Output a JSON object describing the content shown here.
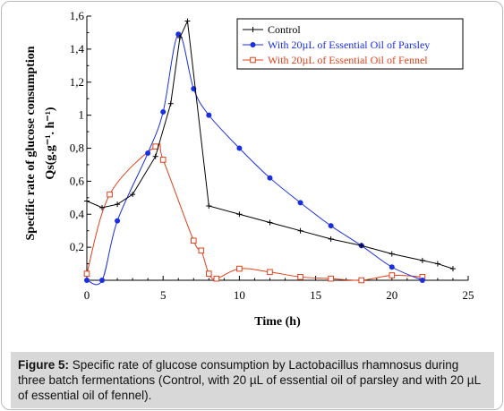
{
  "chart_data": {
    "type": "line",
    "xlabel": "Time (h)",
    "ylabel_line1": "Specific rate of glucose consumption",
    "ylabel_line2": "Qs(g.g⁻¹. h⁻¹)",
    "xlim": [
      0,
      25
    ],
    "ylim": [
      0,
      1.6
    ],
    "x_ticks": [
      0,
      5,
      10,
      15,
      20,
      25
    ],
    "y_ticks": [
      0.2,
      0.4,
      0.6,
      0.8,
      1,
      1.2,
      1.4,
      1.6
    ],
    "y_tick_labels": [
      "0,2",
      "0,4",
      "0,6",
      "0,8",
      "1",
      "1,2",
      "1,4",
      "1,6"
    ],
    "legend_position": "top-right",
    "grid": false,
    "series": [
      {
        "name": "Control",
        "color": "#000000",
        "marker": "plus",
        "points": [
          [
            0,
            0.48
          ],
          [
            1,
            0.44
          ],
          [
            2,
            0.46
          ],
          [
            3,
            0.52
          ],
          [
            4.5,
            0.75
          ],
          [
            5.5,
            1.07
          ],
          [
            6.1,
            1.47
          ],
          [
            6.6,
            1.57
          ],
          [
            8,
            0.45
          ],
          [
            10,
            0.4
          ],
          [
            12,
            0.35
          ],
          [
            14,
            0.3
          ],
          [
            16,
            0.25
          ],
          [
            18,
            0.21
          ],
          [
            20,
            0.16
          ],
          [
            22,
            0.12
          ],
          [
            23,
            0.1
          ],
          [
            24,
            0.07
          ]
        ]
      },
      {
        "name": "With 20µL of Essential Oil of Parsley",
        "color": "#1a2fe0",
        "marker": "circle",
        "curve": "smooth",
        "points": [
          [
            0,
            0.0
          ],
          [
            1,
            0.0
          ],
          [
            2,
            0.36
          ],
          [
            4,
            0.77
          ],
          [
            5,
            1.02
          ],
          [
            6,
            1.49
          ],
          [
            7,
            1.16
          ],
          [
            8,
            1.0
          ],
          [
            10,
            0.8
          ],
          [
            12,
            0.62
          ],
          [
            14,
            0.47
          ],
          [
            16,
            0.33
          ],
          [
            18,
            0.21
          ],
          [
            20,
            0.08
          ],
          [
            22,
            0.0
          ]
        ]
      },
      {
        "name": "With 20µL of Essential Oil of Fennel",
        "color": "#e0401a",
        "marker": "square",
        "curve": "smooth",
        "points": [
          [
            0,
            0.04
          ],
          [
            1.5,
            0.52
          ],
          [
            4.5,
            0.81
          ],
          [
            5,
            0.73
          ],
          [
            7,
            0.24
          ],
          [
            7.5,
            0.18
          ],
          [
            8,
            0.04
          ],
          [
            8.5,
            0.01
          ],
          [
            10,
            0.07
          ],
          [
            12,
            0.05
          ],
          [
            14,
            0.02
          ],
          [
            16,
            0.01
          ],
          [
            18,
            0.0
          ],
          [
            20,
            0.03
          ],
          [
            22,
            0.02
          ]
        ]
      }
    ]
  },
  "caption": {
    "label": "Figure 5:",
    "text": "Specific rate of glucose consumption by Lactobacillus rhamnosus during three batch fermentations (Control, with 20 µL of essential oil of parsley and with 20 µL of essential oil of fennel)."
  }
}
